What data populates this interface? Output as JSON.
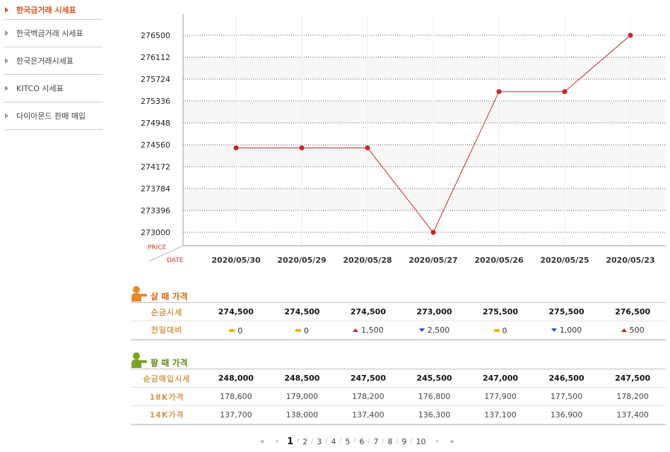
{
  "sidebar": {
    "items": [
      {
        "label": "한국금거래 시세표",
        "active": true
      },
      {
        "label": "한국백금거래 시세표",
        "active": false
      },
      {
        "label": "한국은거래시세표",
        "active": false
      },
      {
        "label": "KITCO 시세표",
        "active": false
      },
      {
        "label": "다이아몬드 판매 매입",
        "active": false
      }
    ]
  },
  "chart_data": {
    "type": "line",
    "categories": [
      "2020/05/30",
      "2020/05/29",
      "2020/05/28",
      "2020/05/27",
      "2020/05/26",
      "2020/05/25",
      "2020/05/23"
    ],
    "values": [
      274500,
      274500,
      274500,
      273000,
      275500,
      275500,
      276500
    ],
    "yticks": [
      "276500",
      "276112",
      "275724",
      "275336",
      "274948",
      "274560",
      "274172",
      "273784",
      "273396",
      "273000"
    ],
    "ylim": [
      273000,
      276500
    ],
    "ylabel": "PRICE",
    "xlabel": "DATE",
    "grid": true,
    "line_color": "#c8262a"
  },
  "buy": {
    "title": "살 때 가격",
    "rows": [
      {
        "label": "순금시세",
        "values": [
          "274,500",
          "274,500",
          "274,500",
          "273,000",
          "275,500",
          "275,500",
          "276,500"
        ]
      }
    ],
    "change": {
      "label": "전일대비",
      "items": [
        {
          "dir": "flat",
          "value": "0"
        },
        {
          "dir": "flat",
          "value": "0"
        },
        {
          "dir": "up",
          "value": "1,500"
        },
        {
          "dir": "down",
          "value": "2,500"
        },
        {
          "dir": "flat",
          "value": "0"
        },
        {
          "dir": "down",
          "value": "1,000"
        },
        {
          "dir": "up",
          "value": "500"
        }
      ]
    }
  },
  "sell": {
    "title": "팔 때 가격",
    "rows": [
      {
        "label": "순금매입시세",
        "bold": true,
        "values": [
          "248,000",
          "248,500",
          "247,500",
          "245,500",
          "247,000",
          "246,500",
          "247,500"
        ]
      },
      {
        "label": "18K가격",
        "bold": false,
        "values": [
          "178,600",
          "179,000",
          "178,200",
          "176,800",
          "177,900",
          "177,500",
          "178,200"
        ]
      },
      {
        "label": "14K가격",
        "bold": false,
        "values": [
          "137,700",
          "138,000",
          "137,400",
          "136,300",
          "137,100",
          "136,900",
          "137,400"
        ]
      }
    ]
  },
  "pager": {
    "first": "«",
    "prev": "‹",
    "pages": [
      "1",
      "2",
      "3",
      "4",
      "5",
      "6",
      "7",
      "8",
      "9",
      "10"
    ],
    "current": "1",
    "next": "›",
    "last": "»"
  }
}
